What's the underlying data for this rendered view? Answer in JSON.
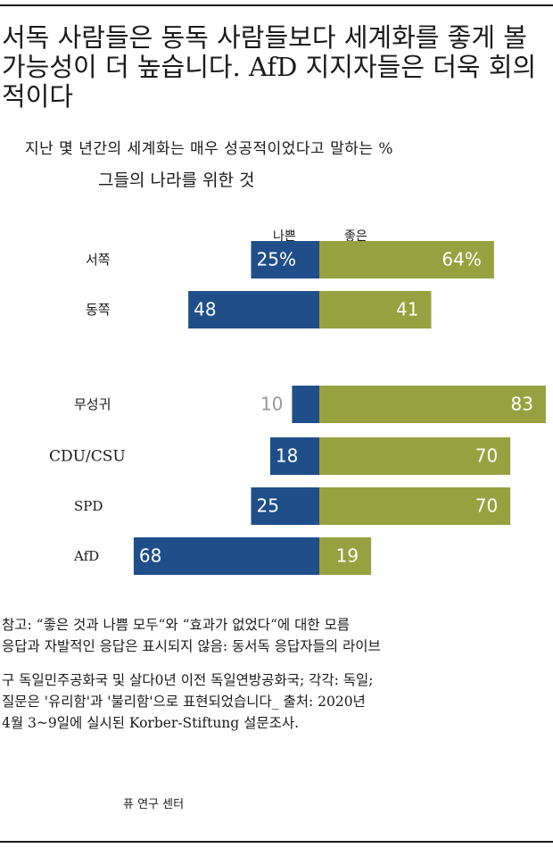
{
  "title": "서독 사람들은 동독 사람들보다 세계화를 좋게 볼 가능성이 더 높습니다. AfD 지지자들은 더욱 회의적이다",
  "subtitle": "지난 몇 년간의 세계화는 매우 성공적이었다고 말하는 %",
  "subtitle2": "그들의 나라를 위한 것",
  "legend": {
    "bad": "나쁜",
    "good": "좋은"
  },
  "colors": {
    "bad": "#1f4e89",
    "good": "#97a13f",
    "label_light": "#ffffff",
    "label_outside": "#999999"
  },
  "chart_data": {
    "type": "bar",
    "orientation": "horizontal-diverging",
    "categories": [
      "서쪽",
      "동쪽",
      "무성귀",
      "CDU/CSU",
      "SPD",
      "AfD"
    ],
    "series": [
      {
        "name": "나쁜",
        "values": [
          25,
          48,
          10,
          18,
          25,
          68
        ],
        "labels": [
          "25%",
          "48",
          "10",
          "18",
          "25",
          "68"
        ]
      },
      {
        "name": "좋은",
        "values": [
          64,
          41,
          83,
          70,
          70,
          19
        ],
        "labels": [
          "64%",
          "41",
          "83",
          "70",
          "70",
          "19"
        ]
      }
    ]
  },
  "note": [
    "참고: “좋은 것과 나쁨 모두“와 “효과가 없었다“에 대한 모름",
    "응답과 자발적인 응답은 표시되지 않음: 동서독 응답자들의 라이브",
    "구 독일민주공화국 및 살다0년 이전 독일연방공화국; 각각: 독일;",
    "질문은 '유리함'과 '불리함'으로 표현되었습니다_ 출처: 2020년",
    "4월 3~9일에 실시된 Korber-Stiftung 설문조사."
  ],
  "source": "퓨 연구 센터"
}
